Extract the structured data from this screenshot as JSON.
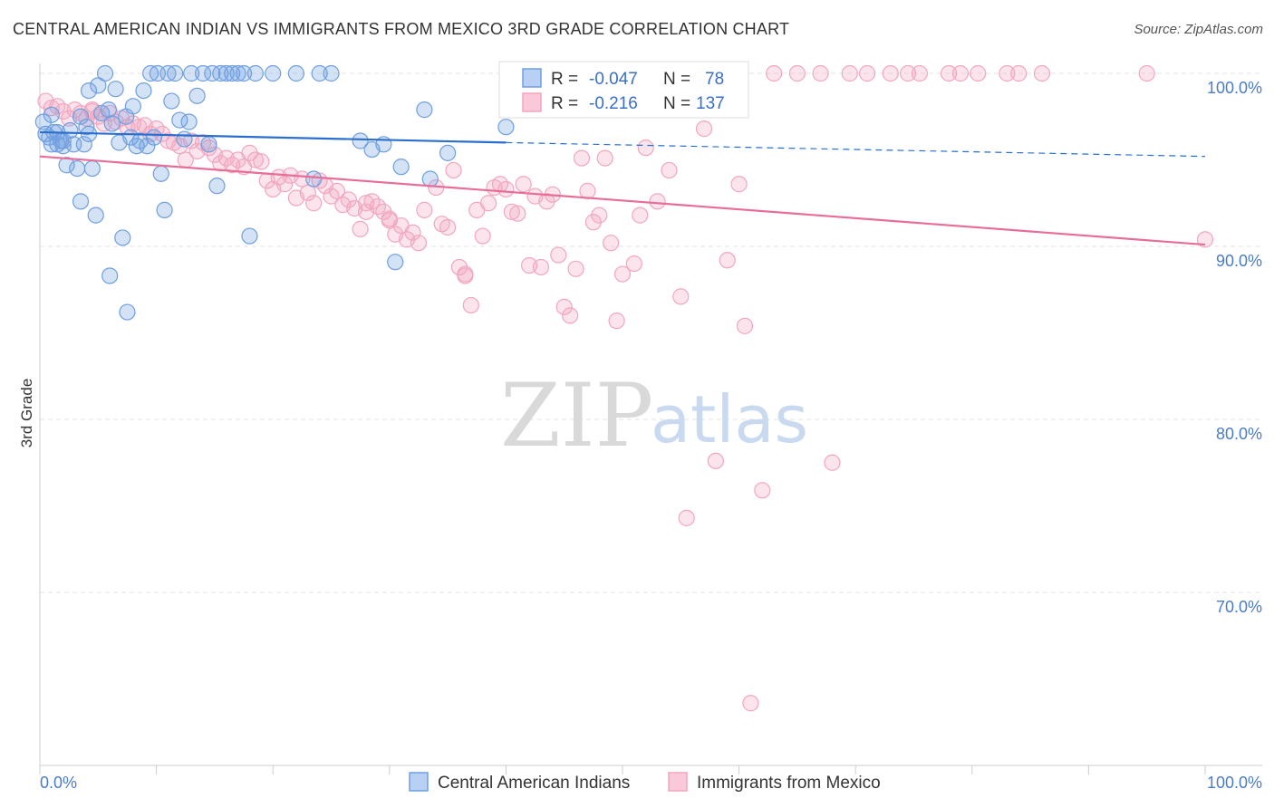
{
  "title": "CENTRAL AMERICAN INDIAN VS IMMIGRANTS FROM MEXICO 3RD GRADE CORRELATION CHART",
  "source": "Source: ZipAtlas.com",
  "watermark": {
    "zip": "ZIP",
    "atlas": "atlas"
  },
  "colors": {
    "blue": "#6f9fe0",
    "blue_line": "#2a6fce",
    "pink": "#f2a6c0",
    "pink_line": "#e86d98",
    "tick_text": "#4a7cc9"
  },
  "legend": {
    "r_label": "R =",
    "n_label": "N =",
    "rows": [
      {
        "r": "-0.047",
        "n": "78",
        "series": "blue"
      },
      {
        "r": "-0.216",
        "n": "137",
        "series": "pink"
      }
    ]
  },
  "chart_data": {
    "type": "scatter",
    "title": "CENTRAL AMERICAN INDIAN VS IMMIGRANTS FROM MEXICO 3RD GRADE CORRELATION CHART",
    "xlabel": "",
    "ylabel": "3rd Grade",
    "xlim": [
      0,
      100
    ],
    "ylim": [
      62,
      101.5
    ],
    "x_tick_labels": [
      "0.0%",
      "100.0%"
    ],
    "y_ticks": [
      {
        "value": 100,
        "label": "100.0%"
      },
      {
        "value": 90,
        "label": "90.0%"
      },
      {
        "value": 80,
        "label": "80.0%"
      },
      {
        "value": 70,
        "label": "70.0%"
      }
    ],
    "grid": true,
    "legend_position": "top-center",
    "series": [
      {
        "name": "Central American Indians",
        "color": "#6f9fe0",
        "trend": {
          "x": [
            0,
            40
          ],
          "y": [
            96.6,
            96.0
          ],
          "dashed_extension": {
            "x": [
              40,
              100
            ],
            "y": [
              96.0,
              95.2
            ]
          }
        },
        "points": [
          [
            0.3,
            97.2
          ],
          [
            0.5,
            96.5
          ],
          [
            0.8,
            96.3
          ],
          [
            1.0,
            97.6
          ],
          [
            1.2,
            96.6
          ],
          [
            1.5,
            95.9
          ],
          [
            1.8,
            96.1
          ],
          [
            2.0,
            95.8
          ],
          [
            2.3,
            94.7
          ],
          [
            2.6,
            96.7
          ],
          [
            2.9,
            95.9
          ],
          [
            3.2,
            94.5
          ],
          [
            3.5,
            97.5
          ],
          [
            3.8,
            95.9
          ],
          [
            3.5,
            92.6
          ],
          [
            4.0,
            96.9
          ],
          [
            4.2,
            96.5
          ],
          [
            4.5,
            94.5
          ],
          [
            4.2,
            99.0
          ],
          [
            4.8,
            91.8
          ],
          [
            5.0,
            99.3
          ],
          [
            5.3,
            97.7
          ],
          [
            5.6,
            100.0
          ],
          [
            5.9,
            97.9
          ],
          [
            6.2,
            97.1
          ],
          [
            6.5,
            99.1
          ],
          [
            6.8,
            96.0
          ],
          [
            7.1,
            90.5
          ],
          [
            7.4,
            97.5
          ],
          [
            7.8,
            96.3
          ],
          [
            8.0,
            98.1
          ],
          [
            8.3,
            95.8
          ],
          [
            8.6,
            96.1
          ],
          [
            8.9,
            99.0
          ],
          [
            9.2,
            95.8
          ],
          [
            9.5,
            100.0
          ],
          [
            9.8,
            96.3
          ],
          [
            10.1,
            100.0
          ],
          [
            10.4,
            94.2
          ],
          [
            10.7,
            92.1
          ],
          [
            11.0,
            100.0
          ],
          [
            11.3,
            98.4
          ],
          [
            11.6,
            100.0
          ],
          [
            12.0,
            97.3
          ],
          [
            12.4,
            96.2
          ],
          [
            12.8,
            97.2
          ],
          [
            13.0,
            100.0
          ],
          [
            13.5,
            98.7
          ],
          [
            14.0,
            100.0
          ],
          [
            14.5,
            95.9
          ],
          [
            14.8,
            100.0
          ],
          [
            15.2,
            93.5
          ],
          [
            15.5,
            100.0
          ],
          [
            16.0,
            100.0
          ],
          [
            16.5,
            100.0
          ],
          [
            17.0,
            100.0
          ],
          [
            17.5,
            100.0
          ],
          [
            18.0,
            90.6
          ],
          [
            18.5,
            100.0
          ],
          [
            20.0,
            100.0
          ],
          [
            22.0,
            100.0
          ],
          [
            23.5,
            93.9
          ],
          [
            24.0,
            100.0
          ],
          [
            25.0,
            100.0
          ],
          [
            27.5,
            96.1
          ],
          [
            28.5,
            95.6
          ],
          [
            29.5,
            95.9
          ],
          [
            31.0,
            94.6
          ],
          [
            30.5,
            89.1
          ],
          [
            33.5,
            93.9
          ],
          [
            33.0,
            97.9
          ],
          [
            35.0,
            95.4
          ],
          [
            40.0,
            96.9
          ],
          [
            1.0,
            95.9
          ],
          [
            1.5,
            96.6
          ],
          [
            2.0,
            96.1
          ],
          [
            6.0,
            88.3
          ],
          [
            7.5,
            86.2
          ]
        ]
      },
      {
        "name": "Immigrants from Mexico",
        "color": "#f2a6c0",
        "trend": {
          "x": [
            0,
            100
          ],
          "y": [
            95.2,
            90.1
          ]
        },
        "points": [
          [
            0.5,
            98.4
          ],
          [
            1.0,
            98.0
          ],
          [
            1.5,
            98.1
          ],
          [
            2.0,
            97.8
          ],
          [
            2.5,
            97.4
          ],
          [
            3.0,
            97.9
          ],
          [
            3.5,
            97.7
          ],
          [
            4.0,
            97.4
          ],
          [
            4.5,
            97.9
          ],
          [
            5.0,
            97.5
          ],
          [
            5.5,
            97.1
          ],
          [
            6.0,
            97.7
          ],
          [
            6.5,
            97.2
          ],
          [
            7.0,
            97.4
          ],
          [
            7.5,
            96.9
          ],
          [
            8.0,
            97.1
          ],
          [
            8.5,
            96.9
          ],
          [
            9.0,
            97.0
          ],
          [
            9.5,
            96.5
          ],
          [
            10.0,
            96.8
          ],
          [
            10.5,
            96.5
          ],
          [
            11.0,
            96.1
          ],
          [
            11.5,
            96.0
          ],
          [
            12.0,
            95.8
          ],
          [
            12.5,
            95.0
          ],
          [
            13.0,
            96.1
          ],
          [
            13.5,
            95.5
          ],
          [
            14.0,
            96.0
          ],
          [
            14.5,
            95.7
          ],
          [
            15.0,
            95.3
          ],
          [
            15.5,
            94.8
          ],
          [
            16.0,
            95.1
          ],
          [
            16.5,
            94.7
          ],
          [
            17.0,
            95.0
          ],
          [
            17.5,
            94.6
          ],
          [
            18.0,
            95.4
          ],
          [
            18.5,
            95.0
          ],
          [
            19.0,
            94.9
          ],
          [
            19.5,
            93.8
          ],
          [
            20.0,
            93.3
          ],
          [
            20.5,
            94.0
          ],
          [
            21.0,
            93.6
          ],
          [
            21.5,
            94.1
          ],
          [
            22.0,
            92.8
          ],
          [
            22.5,
            93.9
          ],
          [
            23.0,
            93.1
          ],
          [
            23.5,
            92.5
          ],
          [
            24.0,
            93.8
          ],
          [
            24.5,
            93.5
          ],
          [
            25.0,
            92.9
          ],
          [
            25.5,
            93.2
          ],
          [
            26.0,
            92.4
          ],
          [
            26.5,
            92.7
          ],
          [
            27.0,
            92.2
          ],
          [
            27.5,
            91.0
          ],
          [
            28.0,
            92.0
          ],
          [
            28.5,
            92.6
          ],
          [
            29.0,
            92.3
          ],
          [
            29.5,
            92.0
          ],
          [
            30.0,
            91.6
          ],
          [
            30.5,
            90.7
          ],
          [
            31.0,
            91.2
          ],
          [
            31.5,
            90.4
          ],
          [
            32.0,
            90.8
          ],
          [
            32.5,
            90.2
          ],
          [
            33.0,
            92.1
          ],
          [
            34.0,
            93.4
          ],
          [
            34.5,
            91.3
          ],
          [
            35.0,
            91.1
          ],
          [
            35.5,
            94.4
          ],
          [
            36.0,
            88.8
          ],
          [
            36.5,
            88.4
          ],
          [
            37.0,
            86.6
          ],
          [
            37.5,
            92.1
          ],
          [
            38.0,
            90.6
          ],
          [
            38.5,
            92.5
          ],
          [
            39.0,
            93.4
          ],
          [
            39.5,
            93.6
          ],
          [
            40.0,
            93.3
          ],
          [
            40.5,
            92.0
          ],
          [
            41.0,
            91.9
          ],
          [
            41.5,
            93.6
          ],
          [
            42.0,
            88.9
          ],
          [
            42.5,
            92.9
          ],
          [
            43.0,
            88.8
          ],
          [
            43.5,
            92.6
          ],
          [
            44.0,
            93.0
          ],
          [
            44.5,
            89.5
          ],
          [
            45.0,
            86.5
          ],
          [
            45.5,
            86.0
          ],
          [
            46.0,
            88.7
          ],
          [
            46.5,
            95.1
          ],
          [
            47.0,
            93.2
          ],
          [
            47.5,
            91.4
          ],
          [
            48.0,
            91.8
          ],
          [
            48.5,
            95.1
          ],
          [
            49.0,
            90.2
          ],
          [
            49.5,
            85.7
          ],
          [
            50.0,
            88.4
          ],
          [
            51.0,
            89.0
          ],
          [
            51.5,
            91.8
          ],
          [
            52.0,
            95.7
          ],
          [
            53.0,
            92.6
          ],
          [
            54.0,
            94.4
          ],
          [
            55.0,
            87.1
          ],
          [
            55.5,
            74.3
          ],
          [
            56.5,
            99.0
          ],
          [
            57.0,
            96.8
          ],
          [
            58.0,
            77.6
          ],
          [
            59.0,
            89.2
          ],
          [
            60.0,
            93.6
          ],
          [
            60.5,
            85.4
          ],
          [
            61.0,
            63.6
          ],
          [
            62.0,
            75.9
          ],
          [
            63.0,
            100.0
          ],
          [
            65.0,
            100.0
          ],
          [
            67.0,
            100.0
          ],
          [
            68.0,
            77.5
          ],
          [
            69.5,
            100.0
          ],
          [
            71.0,
            100.0
          ],
          [
            73.0,
            100.0
          ],
          [
            74.5,
            100.0
          ],
          [
            75.5,
            100.0
          ],
          [
            78.0,
            100.0
          ],
          [
            79.0,
            100.0
          ],
          [
            80.5,
            100.0
          ],
          [
            83.0,
            100.0
          ],
          [
            84.0,
            100.0
          ],
          [
            86.0,
            100.0
          ],
          [
            95.0,
            100.0
          ],
          [
            100.0,
            90.4
          ],
          [
            4.5,
            97.8
          ],
          [
            46.8,
            100.0
          ],
          [
            36.5,
            88.3
          ],
          [
            28.0,
            92.5
          ],
          [
            43.5,
            100.0
          ],
          [
            30.0,
            91.5
          ]
        ]
      }
    ]
  },
  "bottom_legend": [
    {
      "label": "Central American Indians",
      "series": "blue"
    },
    {
      "label": "Immigrants from Mexico",
      "series": "pink"
    }
  ]
}
